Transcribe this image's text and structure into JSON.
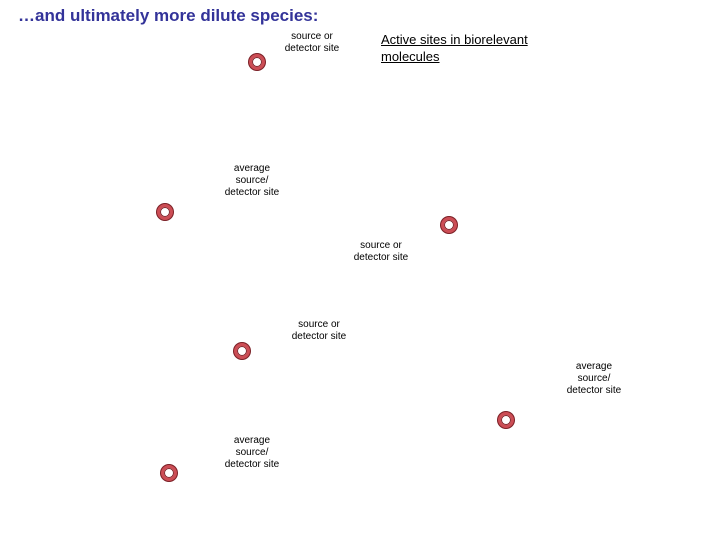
{
  "slide": {
    "title": "…and ultimately more dilute species:",
    "subtitle": "Active sites in biorelevant molecules"
  },
  "colors": {
    "title": "#333399",
    "site_ring": "#cc4d55"
  },
  "sites": [
    {
      "label": "source or\ndetector site"
    },
    {
      "label": "average\nsource/\ndetector site"
    },
    {
      "label": "source or\ndetector site"
    },
    {
      "label": "source or\ndetector site"
    },
    {
      "label": "average\nsource/\ndetector site"
    },
    {
      "label": "average\nsource/\ndetector site"
    }
  ]
}
